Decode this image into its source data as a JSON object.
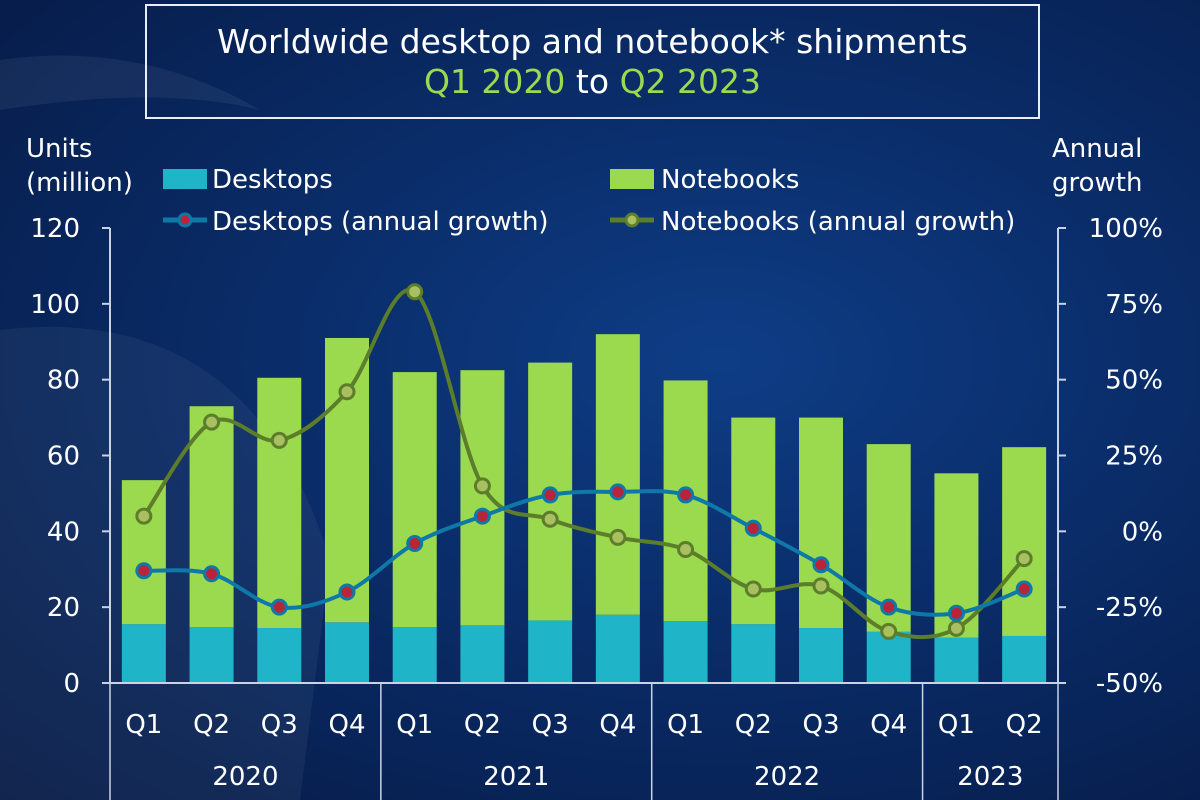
{
  "title": {
    "line1": "Worldwide desktop and notebook* shipments",
    "range_start": "Q1 2020",
    "range_to": "to",
    "range_end": "Q2 2023"
  },
  "left_axis_title": [
    "Units",
    "(million)"
  ],
  "right_axis_title": [
    "Annual",
    "growth"
  ],
  "colors": {
    "desktops_bar": "#1fb4c8",
    "notebooks_bar": "#9bd94f",
    "desktops_line": "#0e79a8",
    "notebooks_line": "#5c7d2a",
    "marker_dot_desktops": "#b8243a",
    "marker_dot_notebooks": "#a8c060"
  },
  "chart_data": {
    "type": "bar",
    "stacked": true,
    "categories": [
      "Q1",
      "Q2",
      "Q3",
      "Q4",
      "Q1",
      "Q2",
      "Q3",
      "Q4",
      "Q1",
      "Q2",
      "Q3",
      "Q4",
      "Q1",
      "Q2"
    ],
    "year_groups": [
      {
        "label": "2020",
        "count": 4
      },
      {
        "label": "2021",
        "count": 4
      },
      {
        "label": "2022",
        "count": 4
      },
      {
        "label": "2023",
        "count": 2
      }
    ],
    "series": [
      {
        "name": "Desktops",
        "axis": "left",
        "kind": "bar",
        "values": [
          15.5,
          14.7,
          14.5,
          16.0,
          14.7,
          15.2,
          16.5,
          18.0,
          16.3,
          15.5,
          14.5,
          13.5,
          12.0,
          12.4
        ]
      },
      {
        "name": "Notebooks",
        "axis": "left",
        "kind": "bar",
        "values": [
          38.0,
          58.3,
          66.0,
          75.0,
          67.3,
          67.3,
          68.0,
          74.0,
          63.5,
          54.5,
          55.5,
          49.5,
          43.3,
          49.8
        ]
      },
      {
        "name": "Desktops (annual growth)",
        "axis": "right",
        "kind": "line",
        "values": [
          -13,
          -14,
          -25,
          -20,
          -4,
          5,
          12,
          13,
          12,
          1,
          -11,
          -25,
          -27,
          -19
        ]
      },
      {
        "name": "Notebooks (annual growth)",
        "axis": "right",
        "kind": "line",
        "values": [
          5,
          36,
          30,
          46,
          79,
          15,
          4,
          -2,
          -6,
          -19,
          -18,
          -33,
          -32,
          -9
        ]
      }
    ],
    "ylim_left": [
      0,
      120
    ],
    "left_ticks": [
      "0",
      "20",
      "40",
      "60",
      "80",
      "100",
      "120"
    ],
    "ylim_right": [
      -50,
      100
    ],
    "right_ticks": [
      "-50%",
      "-25%",
      "0%",
      "25%",
      "50%",
      "75%",
      "100%"
    ],
    "grid": false,
    "legend_position": "top"
  }
}
